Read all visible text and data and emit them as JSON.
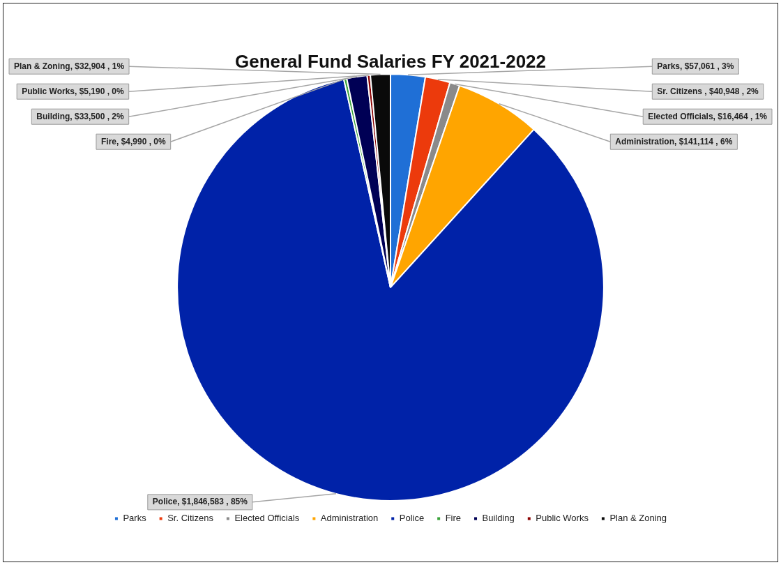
{
  "chart_data": {
    "type": "pie",
    "title": "General Fund Salaries FY 2021-2022",
    "categories": [
      "Parks",
      "Sr. Citizens",
      "Elected Officials",
      "Administration",
      "Police",
      "Fire",
      "Building",
      "Public Works",
      "Plan & Zoning"
    ],
    "values": [
      57061,
      40948,
      16464,
      141114,
      1846583,
      4990,
      33500,
      5190,
      32904
    ],
    "colors": [
      "#1f6fd6",
      "#ec3a0c",
      "#8a8a8a",
      "#ffa500",
      "#0022a8",
      "#3aa33a",
      "#000055",
      "#8b0000",
      "#0a0a0a"
    ],
    "value_labels": [
      "Parks, $57,061 , 3%",
      "Sr. Citizens , $40,948 , 2%",
      "Elected Officials, $16,464 , 1%",
      "Administration, $141,114 , 6%",
      "Police, $1,846,583 , 85%",
      "Fire, $4,990 , 0%",
      "Building, $33,500 , 2%",
      "Public Works, $5,190 , 0%",
      "Plan & Zoning, $32,904 , 1%"
    ],
    "legend": "bottom"
  }
}
